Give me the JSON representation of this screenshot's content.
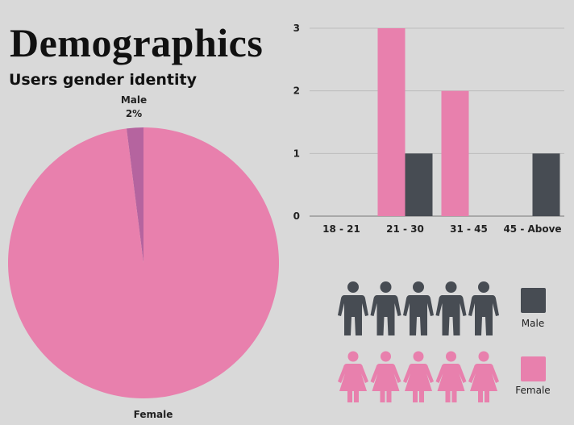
{
  "header": {
    "title": "Demographics"
  },
  "colors": {
    "female": "#e880ad",
    "male": "#474c53",
    "male_slice": "#b5649f",
    "gridline": "#bdbdbd",
    "axis": "#777777"
  },
  "chart_data": [
    {
      "type": "pie",
      "title": "Users gender identity",
      "slices": [
        {
          "label": "Male",
          "value": 2,
          "value_label": "2%"
        },
        {
          "label": "Female",
          "value": 98
        }
      ]
    },
    {
      "type": "bar",
      "categories": [
        "18 - 21",
        "21 - 30",
        "31 - 45",
        "45 - Above"
      ],
      "series": [
        {
          "name": "Female",
          "values": [
            0,
            3,
            2,
            0
          ]
        },
        {
          "name": "Male",
          "values": [
            0,
            1,
            0,
            1
          ]
        }
      ],
      "ylim": [
        0,
        3
      ],
      "yticks": [
        0,
        1,
        2,
        3
      ],
      "grid": true
    }
  ],
  "legend": {
    "male": "Male",
    "female": "Female",
    "icons_per_row": 5
  }
}
